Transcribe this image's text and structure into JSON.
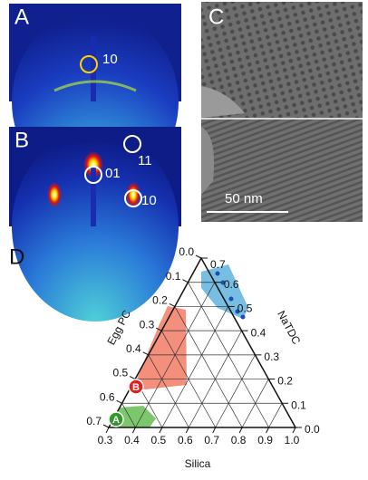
{
  "panels": {
    "A": {
      "label": "A",
      "annotation": "10"
    },
    "B": {
      "label": "B",
      "annotations": [
        "11",
        "01",
        "10"
      ]
    },
    "C": {
      "label": "C",
      "scale_bar": "50 nm"
    },
    "D": {
      "label": "D",
      "left_axis": {
        "title": "Egg PC",
        "ticks": [
          "0.0",
          "0.1",
          "0.2",
          "0.3",
          "0.4",
          "0.5",
          "0.6",
          "0.7"
        ]
      },
      "right_axis": {
        "title": "NaTDC",
        "ticks": [
          "0.7",
          "0.6",
          "0.5",
          "0.4",
          "0.3",
          "0.2",
          "0.1",
          "0.0"
        ]
      },
      "bottom_axis": {
        "title": "Silica",
        "ticks": [
          "0.3",
          "0.4",
          "0.5",
          "0.6",
          "0.7",
          "0.8",
          "0.9",
          "1.0"
        ]
      },
      "markers": [
        "B",
        "A"
      ]
    }
  }
}
